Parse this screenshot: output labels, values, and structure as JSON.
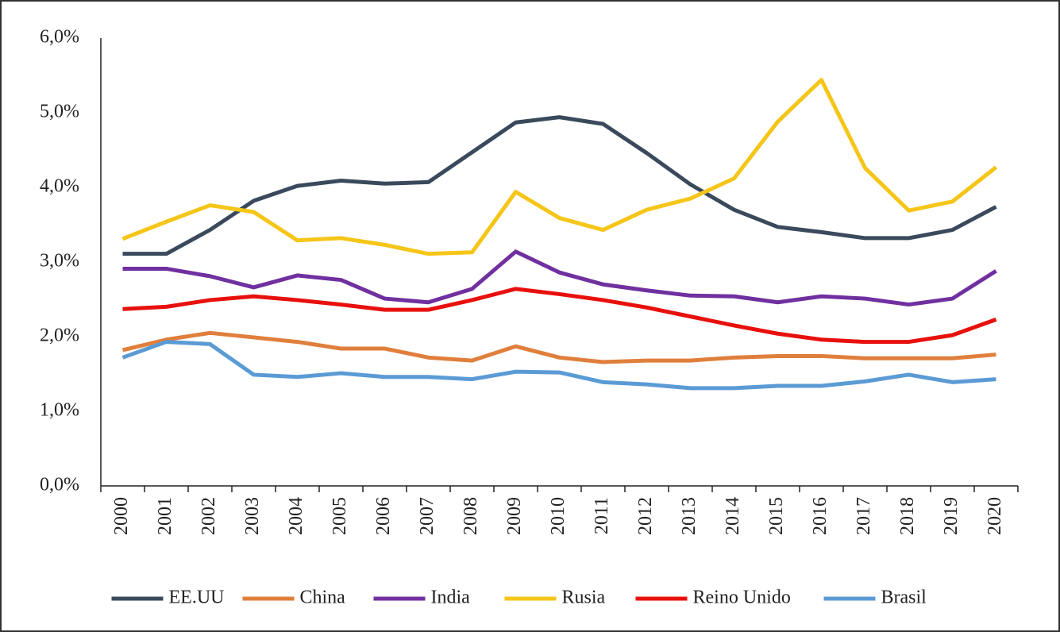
{
  "chart_data": {
    "type": "line",
    "categories": [
      "2000",
      "2001",
      "2002",
      "2003",
      "2004",
      "2005",
      "2006",
      "2007",
      "2008",
      "2009",
      "2010",
      "2011",
      "2012",
      "2013",
      "2014",
      "2015",
      "2016",
      "2017",
      "2018",
      "2019",
      "2020"
    ],
    "ylim": [
      0,
      6
    ],
    "yticks": [
      {
        "value": 0,
        "label": "0,0%"
      },
      {
        "value": 1,
        "label": "1,0%"
      },
      {
        "value": 2,
        "label": "2,0%"
      },
      {
        "value": 3,
        "label": "3,0%"
      },
      {
        "value": 4,
        "label": "4,0%"
      },
      {
        "value": 5,
        "label": "5,0%"
      },
      {
        "value": 6,
        "label": "6,0%"
      }
    ],
    "grid": false,
    "legend": "bottom",
    "series": [
      {
        "name": "EE.UU",
        "color": "#3a4a5c",
        "values": [
          3.11,
          3.11,
          3.43,
          3.82,
          4.02,
          4.09,
          4.05,
          4.07,
          4.47,
          4.87,
          4.94,
          4.85,
          4.46,
          4.04,
          3.7,
          3.47,
          3.4,
          3.32,
          3.32,
          3.43,
          3.74
        ]
      },
      {
        "name": "China",
        "color": "#e07f3c",
        "values": [
          1.82,
          1.96,
          2.05,
          1.99,
          1.93,
          1.84,
          1.84,
          1.72,
          1.68,
          1.87,
          1.72,
          1.66,
          1.68,
          1.68,
          1.72,
          1.74,
          1.74,
          1.71,
          1.71,
          1.71,
          1.76
        ]
      },
      {
        "name": "India",
        "color": "#7030a0",
        "values": [
          2.91,
          2.91,
          2.81,
          2.66,
          2.82,
          2.76,
          2.51,
          2.46,
          2.64,
          3.14,
          2.86,
          2.7,
          2.62,
          2.55,
          2.54,
          2.46,
          2.54,
          2.51,
          2.43,
          2.51,
          2.88
        ]
      },
      {
        "name": "Rusia",
        "color": "#f5c518",
        "values": [
          3.31,
          3.54,
          3.76,
          3.67,
          3.29,
          3.32,
          3.23,
          3.11,
          3.13,
          3.94,
          3.59,
          3.43,
          3.7,
          3.85,
          4.12,
          4.88,
          5.44,
          4.26,
          3.69,
          3.81,
          4.27
        ]
      },
      {
        "name": "Reino Unido",
        "color": "#e8100c",
        "values": [
          2.37,
          2.4,
          2.49,
          2.54,
          2.49,
          2.43,
          2.36,
          2.36,
          2.49,
          2.64,
          2.57,
          2.49,
          2.39,
          2.27,
          2.15,
          2.04,
          1.96,
          1.93,
          1.93,
          2.02,
          2.23
        ]
      },
      {
        "name": "Brasil",
        "color": "#5b9bd5",
        "values": [
          1.72,
          1.93,
          1.9,
          1.49,
          1.46,
          1.51,
          1.46,
          1.46,
          1.43,
          1.53,
          1.52,
          1.39,
          1.36,
          1.31,
          1.31,
          1.34,
          1.34,
          1.4,
          1.49,
          1.39,
          1.43
        ]
      }
    ]
  }
}
